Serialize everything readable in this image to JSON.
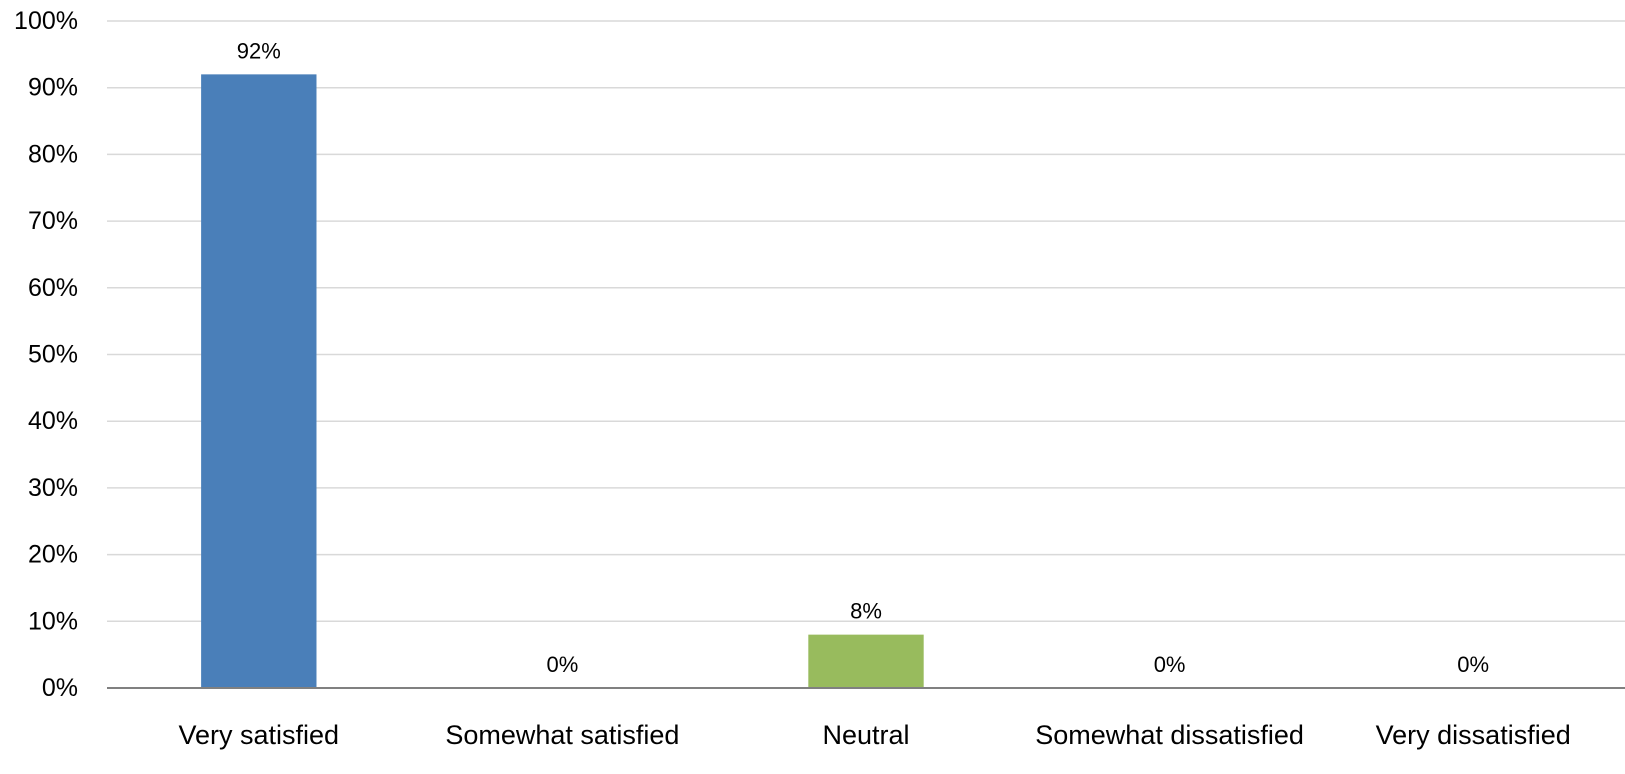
{
  "chart_data": {
    "type": "bar",
    "categories": [
      "Very satisfied",
      "Somewhat satisfied",
      "Neutral",
      "Somewhat dissatisfied",
      "Very dissatisfied"
    ],
    "values": [
      92,
      0,
      8,
      0,
      0
    ],
    "data_labels": [
      "92%",
      "0%",
      "8%",
      "0%",
      "0%"
    ],
    "bar_colors": [
      "#4a7fb9",
      "#4a7fb9",
      "#98bb5d",
      "#4a7fb9",
      "#4a7fb9"
    ],
    "ylim": [
      0,
      100
    ],
    "yticks": [
      0,
      10,
      20,
      30,
      40,
      50,
      60,
      70,
      80,
      90,
      100
    ],
    "ytick_labels": [
      "0%",
      "10%",
      "20%",
      "30%",
      "40%",
      "50%",
      "60%",
      "70%",
      "80%",
      "90%",
      "100%"
    ],
    "grid": true,
    "grid_color": "#d9d9d9",
    "axis_color": "#808080",
    "title": "",
    "xlabel": "",
    "ylabel": ""
  }
}
